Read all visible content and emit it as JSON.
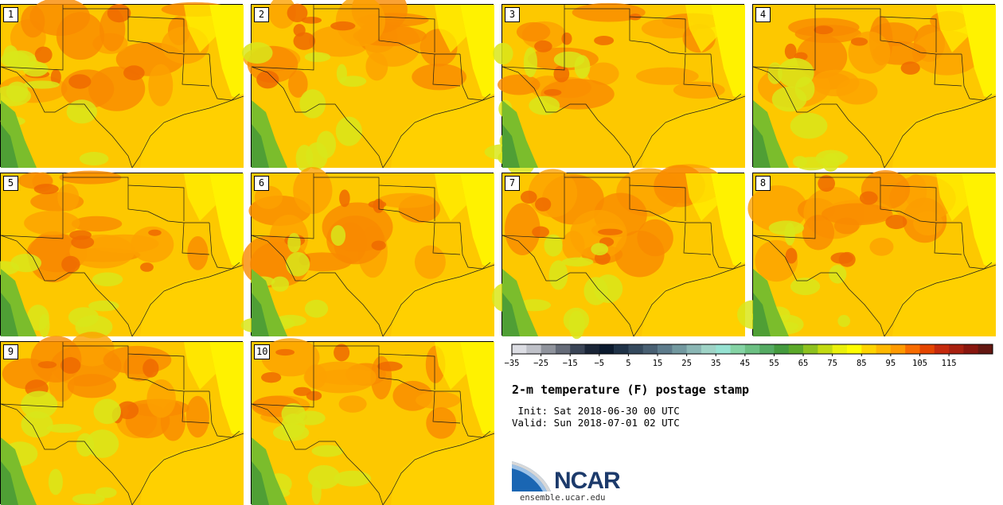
{
  "panels": [
    {
      "label": "1"
    },
    {
      "label": "2"
    },
    {
      "label": "3"
    },
    {
      "label": "4"
    },
    {
      "label": "5"
    },
    {
      "label": "6"
    },
    {
      "label": "7"
    },
    {
      "label": "8"
    },
    {
      "label": "9"
    },
    {
      "label": "10"
    }
  ],
  "colorbar": {
    "colors": [
      "#dcdde3",
      "#bfc1c8",
      "#8f939c",
      "#656b78",
      "#3a4456",
      "#1a2537",
      "#0b1a2e",
      "#1f3247",
      "#34495d",
      "#485f72",
      "#5d7b8b",
      "#72989f",
      "#8ab6b4",
      "#9ed3c6",
      "#96e2d2",
      "#84d3a4",
      "#6cc083",
      "#55ab63",
      "#449a3e",
      "#5ba92a",
      "#8dc11f",
      "#c2da11",
      "#eaf00c",
      "#fffd00",
      "#ffd400",
      "#ffb800",
      "#ff9a00",
      "#f86c00",
      "#e44500",
      "#c52a0d",
      "#a7200f",
      "#88160e",
      "#631711"
    ],
    "tick_labels": [
      "−35",
      "−25",
      "−15",
      "−5",
      "5",
      "15",
      "25",
      "35",
      "45",
      "55",
      "65",
      "75",
      "85",
      "95",
      "105",
      "115"
    ]
  },
  "title": "2-m temperature (F) postage stamp",
  "init": " Init: Sat 2018-06-30 00 UTC",
  "valid": "Valid: Sun 2018-07-01 02 UTC",
  "logo": {
    "name": "NCAR",
    "url": "ensemble.ucar.edu"
  }
}
